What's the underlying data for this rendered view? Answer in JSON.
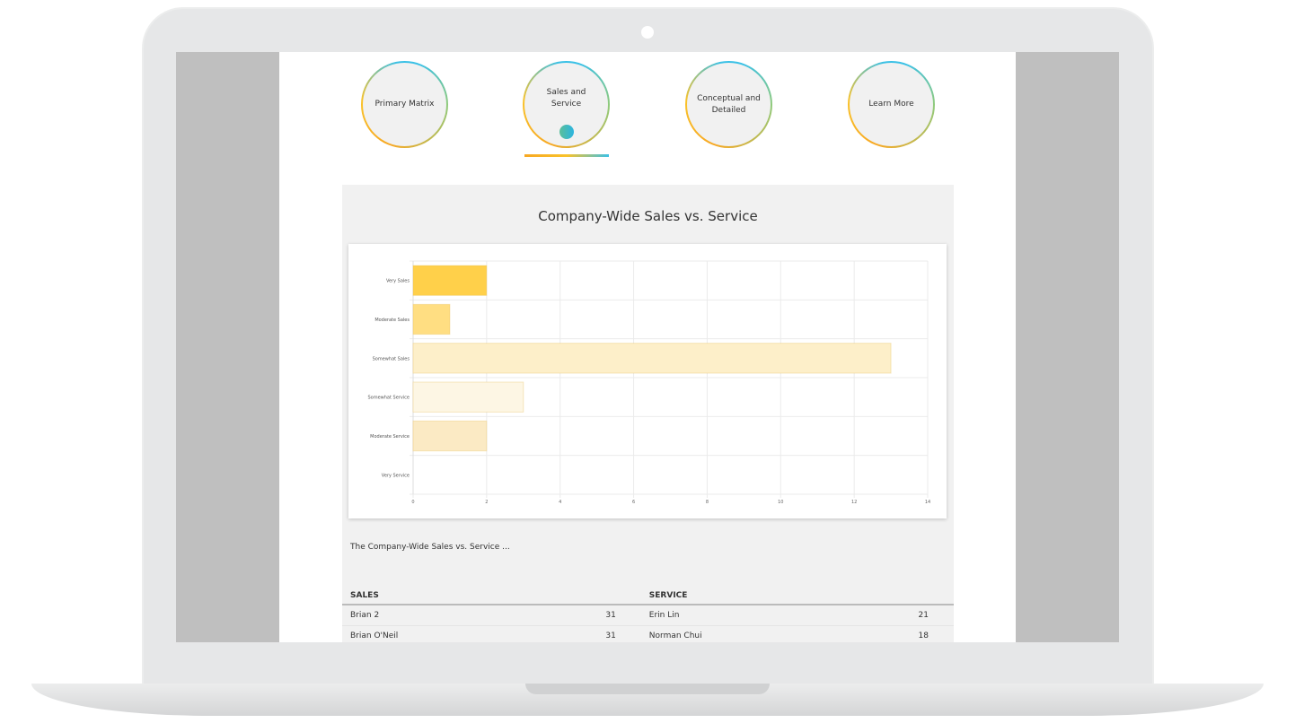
{
  "nav": [
    {
      "label": "Primary Matrix"
    },
    {
      "label": "Sales and Service",
      "active": true
    },
    {
      "label": "Conceptual and Detailed"
    },
    {
      "label": "Learn More"
    }
  ],
  "card": {
    "title": "Company-Wide Sales vs. Service",
    "description": "The Company-Wide Sales vs. Service ..."
  },
  "chart_data": {
    "type": "bar",
    "orientation": "horizontal",
    "categories": [
      "Very Sales",
      "Moderate Sales",
      "Somewhat Sales",
      "Somewhat Service",
      "Moderate Service",
      "Very Service"
    ],
    "values": [
      2,
      1,
      13,
      3,
      2,
      0
    ],
    "colors": [
      "#ffd04a",
      "#ffde82",
      "#fdefc9",
      "#fdf6e4",
      "#fbeac4",
      "#fbeac4"
    ],
    "xlim": [
      0,
      14
    ],
    "xticks": [
      0,
      2,
      4,
      6,
      8,
      10,
      12,
      14
    ],
    "grid": true
  },
  "table": {
    "headers": [
      "SALES",
      "",
      "SERVICE",
      ""
    ],
    "rows": [
      [
        "Brian 2",
        "31",
        "Erin Lin",
        "21"
      ],
      [
        "Brian O'Neil",
        "31",
        "Norman Chui",
        "18"
      ]
    ]
  }
}
